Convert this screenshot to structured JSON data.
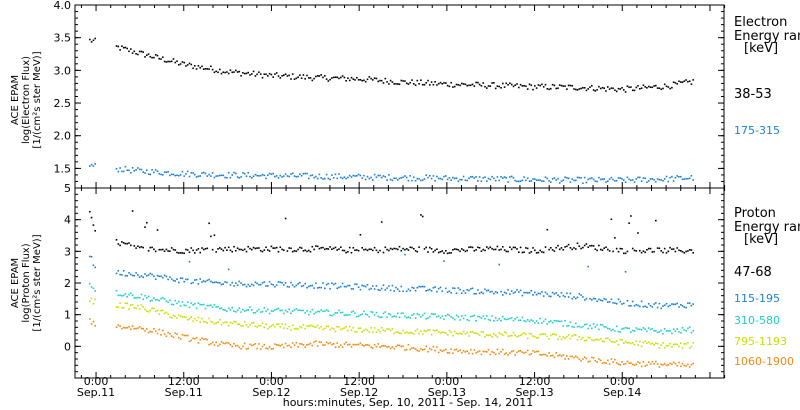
{
  "chart_data": [
    {
      "type": "scatter",
      "panel": "electron",
      "ylabel_lines": [
        "ACE EPAM",
        "log(Electron Flux)",
        "[1/(cm²s ster MeV)]"
      ],
      "ylim": [
        1.2,
        4.0
      ],
      "yticks": [
        "1.5",
        "2.0",
        "2.5",
        "3.0",
        "3.5",
        "4.0"
      ],
      "legend_title": [
        "Electron",
        "Energy ranges",
        "[keV]"
      ],
      "gap": [
        0.0,
        0.11
      ],
      "series": [
        {
          "name": "38-53",
          "color": "#000000",
          "x": [
            -0.04,
            0.0,
            0.25,
            0.5,
            0.75,
            1.0,
            1.25,
            1.5,
            1.75,
            2.0,
            2.25,
            2.5,
            2.75,
            3.0,
            3.25,
            3.4
          ],
          "values": [
            3.47,
            3.45,
            3.27,
            3.1,
            2.99,
            2.93,
            2.9,
            2.88,
            2.83,
            2.8,
            2.78,
            2.76,
            2.75,
            2.72,
            2.77,
            2.84
          ]
        },
        {
          "name": "175-315",
          "color": "#1c7fd6",
          "x": [
            -0.04,
            0.0,
            0.25,
            0.5,
            0.75,
            1.0,
            1.25,
            1.5,
            1.75,
            2.0,
            2.25,
            2.5,
            2.75,
            3.0,
            3.25,
            3.4
          ],
          "values": [
            1.56,
            1.54,
            1.47,
            1.43,
            1.41,
            1.4,
            1.39,
            1.38,
            1.37,
            1.36,
            1.35,
            1.34,
            1.33,
            1.33,
            1.35,
            1.37
          ]
        }
      ]
    },
    {
      "type": "scatter",
      "panel": "proton",
      "ylabel_lines": [
        "ACE EPAM",
        "log(Proton Flux)",
        "[1/(cm²s ster MeV)]"
      ],
      "ylim": [
        -1.0,
        5.0
      ],
      "yticks": [
        "0",
        "1",
        "2",
        "3",
        "4",
        "5"
      ],
      "legend_title": [
        "Proton",
        "Energy ranges",
        "[keV]"
      ],
      "gap": [
        0.0,
        0.11
      ],
      "series": [
        {
          "name": "47-68",
          "color": "#000000",
          "x": [
            -0.04,
            0.0,
            0.25,
            0.5,
            0.75,
            1.0,
            1.25,
            1.5,
            1.75,
            2.0,
            2.25,
            2.5,
            2.75,
            3.0,
            3.25,
            3.4
          ],
          "values": [
            4.2,
            3.5,
            3.1,
            3.05,
            3.1,
            3.1,
            3.1,
            3.05,
            3.1,
            3.05,
            3.1,
            3.05,
            3.2,
            3.05,
            3.05,
            3.05
          ]
        },
        {
          "name": "115-195",
          "color": "#1c7fd6",
          "x": [
            -0.04,
            0.0,
            0.25,
            0.5,
            0.75,
            1.0,
            1.25,
            1.5,
            1.75,
            2.0,
            2.25,
            2.5,
            2.75,
            3.0,
            3.25,
            3.4
          ],
          "values": [
            2.9,
            2.4,
            2.3,
            2.1,
            2.0,
            2.0,
            1.95,
            1.9,
            1.85,
            1.8,
            1.75,
            1.7,
            1.6,
            1.4,
            1.3,
            1.35
          ]
        },
        {
          "name": "310-580",
          "color": "#1ed0c8",
          "x": [
            -0.04,
            0.0,
            0.25,
            0.5,
            0.75,
            1.0,
            1.25,
            1.5,
            1.75,
            2.0,
            2.25,
            2.5,
            2.75,
            3.0,
            3.25,
            3.4
          ],
          "values": [
            2.0,
            1.8,
            1.6,
            1.35,
            1.2,
            1.15,
            1.1,
            1.05,
            1.0,
            0.95,
            0.9,
            0.85,
            0.7,
            0.55,
            0.5,
            0.55
          ]
        },
        {
          "name": "795-1193",
          "color": "#c8e000",
          "x": [
            -0.04,
            0.0,
            0.25,
            0.5,
            0.75,
            1.0,
            1.25,
            1.5,
            1.75,
            2.0,
            2.25,
            2.5,
            2.75,
            3.0,
            3.25,
            3.4
          ],
          "values": [
            1.5,
            1.4,
            1.25,
            0.9,
            0.75,
            0.65,
            0.6,
            0.55,
            0.5,
            0.45,
            0.4,
            0.35,
            0.3,
            0.15,
            0.05,
            0.05
          ]
        },
        {
          "name": "1060-1900",
          "color": "#f08a10",
          "x": [
            -0.04,
            0.0,
            0.25,
            0.5,
            0.75,
            1.0,
            1.25,
            1.5,
            1.75,
            2.0,
            2.25,
            2.5,
            2.75,
            3.0,
            3.25,
            3.4
          ],
          "values": [
            0.85,
            0.7,
            0.6,
            0.3,
            0.05,
            0.0,
            0.1,
            0.05,
            0.0,
            -0.1,
            -0.15,
            -0.2,
            -0.35,
            -0.5,
            -0.55,
            -0.6
          ]
        }
      ]
    }
  ],
  "x_axis": {
    "range_days": [
      -0.12,
      3.58
    ],
    "major_ticks": [
      {
        "day": 0.0,
        "time": "0:00",
        "date": "Sep.11"
      },
      {
        "day": 0.5,
        "time": "12:00",
        "date": "Sep.11"
      },
      {
        "day": 1.0,
        "time": "0:00",
        "date": "Sep.12"
      },
      {
        "day": 1.5,
        "time": "12:00",
        "date": "Sep.12"
      },
      {
        "day": 2.0,
        "time": "0:00",
        "date": "Sep.13"
      },
      {
        "day": 2.5,
        "time": "12:00",
        "date": "Sep.13"
      },
      {
        "day": 3.0,
        "time": "0:00",
        "date": "Sep.14"
      }
    ],
    "label": "hours:minutes, Sep. 10, 2011 - Sep. 14, 2011"
  }
}
